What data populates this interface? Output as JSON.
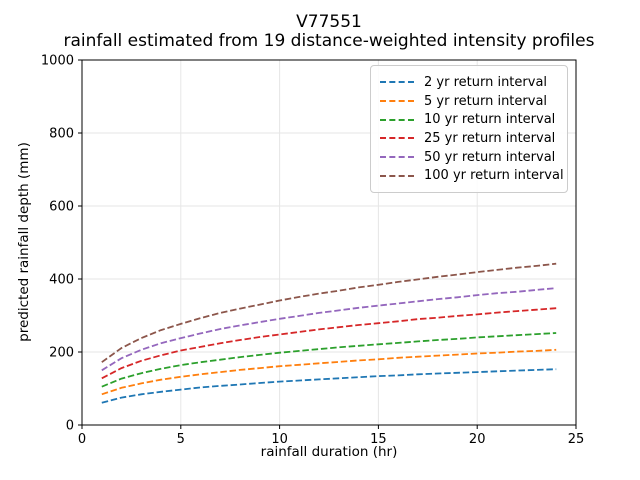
{
  "title": {
    "line1": "V77551",
    "line2": "rainfall estimated from 19 distance-weighted intensity profiles"
  },
  "chart_data": {
    "type": "line",
    "title": "V77551 — rainfall estimated from 19 distance-weighted intensity profiles",
    "xlabel": "rainfall duration (hr)",
    "ylabel": "predicted rainfall depth (mm)",
    "xlim": [
      0,
      25
    ],
    "ylim": [
      0,
      1000
    ],
    "xticks": [
      0,
      5,
      10,
      15,
      20,
      25
    ],
    "yticks": [
      0,
      200,
      400,
      600,
      800,
      1000
    ],
    "grid": true,
    "grid_color": "#e6e6e6",
    "line_style": "dashed",
    "legend_position": "upper right",
    "x": [
      1,
      2,
      3,
      4,
      5,
      6,
      7,
      8,
      9,
      10,
      11,
      12,
      13,
      14,
      15,
      16,
      17,
      18,
      19,
      20,
      21,
      22,
      23,
      24
    ],
    "series": [
      {
        "name": "2 yr return interval",
        "color": "#1f77b4",
        "values": [
          61,
          75,
          84,
          91,
          97,
          103,
          107,
          111,
          115,
          119,
          122,
          125,
          128,
          131,
          134,
          136,
          139,
          141,
          143,
          145,
          147,
          149,
          151,
          153
        ]
      },
      {
        "name": "5 yr return interval",
        "color": "#ff7f0e",
        "values": [
          84,
          102,
          114,
          124,
          132,
          139,
          145,
          151,
          156,
          161,
          165,
          169,
          173,
          177,
          180,
          184,
          187,
          190,
          193,
          196,
          198,
          201,
          203,
          206
        ]
      },
      {
        "name": "10 yr return interval",
        "color": "#2ca02c",
        "values": [
          105,
          127,
          142,
          154,
          164,
          172,
          179,
          186,
          192,
          198,
          203,
          208,
          213,
          217,
          221,
          225,
          229,
          233,
          236,
          240,
          243,
          246,
          249,
          252
        ]
      },
      {
        "name": "25 yr return interval",
        "color": "#d62728",
        "values": [
          128,
          156,
          176,
          191,
          204,
          214,
          224,
          233,
          241,
          248,
          255,
          262,
          268,
          274,
          279,
          284,
          290,
          294,
          299,
          303,
          308,
          312,
          316,
          320
        ]
      },
      {
        "name": "50 yr return interval",
        "color": "#9467bd",
        "values": [
          150,
          183,
          206,
          224,
          238,
          251,
          263,
          273,
          282,
          291,
          299,
          307,
          314,
          321,
          327,
          333,
          339,
          345,
          350,
          356,
          361,
          365,
          370,
          375
        ]
      },
      {
        "name": "100 yr return interval",
        "color": "#8c564b",
        "values": [
          172,
          211,
          238,
          260,
          277,
          293,
          307,
          319,
          330,
          341,
          351,
          360,
          368,
          377,
          384,
          392,
          399,
          406,
          412,
          419,
          425,
          431,
          436,
          442
        ]
      }
    ]
  }
}
